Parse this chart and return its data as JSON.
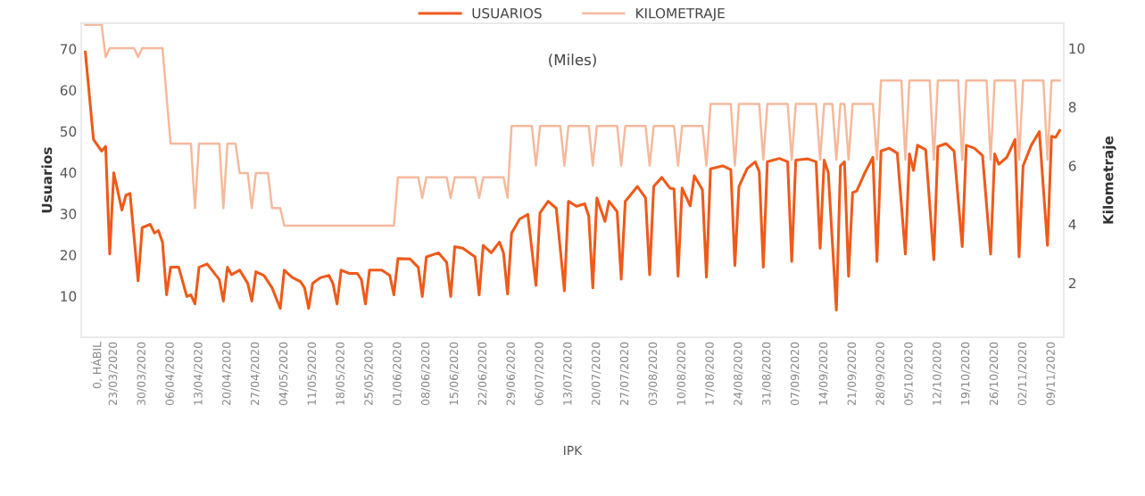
{
  "chart_data": {
    "type": "line",
    "subtitle": "(Miles)",
    "xlabel": "IPK",
    "ylabel": "Usuarios",
    "y2label": "Kilometraje",
    "legend": "top",
    "grid": false,
    "xlim": [
      "2020-03-15",
      "2020-11-12"
    ],
    "xticks": [
      {
        "value": "2020-03-19",
        "label": "0, HÁBIL"
      },
      {
        "value": "2020-03-23",
        "label": "23/03/2020"
      },
      {
        "value": "2020-03-30",
        "label": "30/03/2020"
      },
      {
        "value": "2020-04-06",
        "label": "06/04/2020"
      },
      {
        "value": "2020-04-13",
        "label": "13/04/2020"
      },
      {
        "value": "2020-04-20",
        "label": "20/04/2020"
      },
      {
        "value": "2020-04-27",
        "label": "27/04/2020"
      },
      {
        "value": "2020-05-04",
        "label": "04/05/2020"
      },
      {
        "value": "2020-05-11",
        "label": "11/05/2020"
      },
      {
        "value": "2020-05-18",
        "label": "18/05/2020"
      },
      {
        "value": "2020-05-25",
        "label": "25/05/2020"
      },
      {
        "value": "2020-06-01",
        "label": "01/06/2020"
      },
      {
        "value": "2020-06-08",
        "label": "08/06/2020"
      },
      {
        "value": "2020-06-15",
        "label": "15/06/2020"
      },
      {
        "value": "2020-06-22",
        "label": "22/06/2020"
      },
      {
        "value": "2020-06-29",
        "label": "29/06/2020"
      },
      {
        "value": "2020-07-06",
        "label": "06/07/2020"
      },
      {
        "value": "2020-07-13",
        "label": "13/07/2020"
      },
      {
        "value": "2020-07-20",
        "label": "20/07/2020"
      },
      {
        "value": "2020-07-27",
        "label": "27/07/2020"
      },
      {
        "value": "2020-08-03",
        "label": "03/08/2020"
      },
      {
        "value": "2020-08-10",
        "label": "10/08/2020"
      },
      {
        "value": "2020-08-17",
        "label": "17/08/2020"
      },
      {
        "value": "2020-08-24",
        "label": "24/08/2020"
      },
      {
        "value": "2020-08-31",
        "label": "31/08/2020"
      },
      {
        "value": "2020-09-07",
        "label": "07/09/2020"
      },
      {
        "value": "2020-09-14",
        "label": "14/09/2020"
      },
      {
        "value": "2020-09-21",
        "label": "21/09/2020"
      },
      {
        "value": "2020-09-28",
        "label": "28/09/2020"
      },
      {
        "value": "2020-10-05",
        "label": "05/10/2020"
      },
      {
        "value": "2020-10-12",
        "label": "12/10/2020"
      },
      {
        "value": "2020-10-19",
        "label": "19/10/2020"
      },
      {
        "value": "2020-10-26",
        "label": "26/10/2020"
      },
      {
        "value": "2020-11-02",
        "label": "02/11/2020"
      },
      {
        "value": "2020-11-09",
        "label": "09/11/2020"
      }
    ],
    "ylim": [
      0,
      76.2
    ],
    "yticks": [
      10,
      20,
      30,
      40,
      50,
      60,
      70
    ],
    "y2lim": [
      0.15,
      10.85
    ],
    "y2ticks": [
      2,
      4,
      6,
      8,
      10
    ],
    "series": [
      {
        "name": "USUARIOS",
        "color": "#ef5a1a",
        "x": [
          "2020-03-16",
          "2020-03-18",
          "2020-03-20",
          "2020-03-21",
          "2020-03-22",
          "2020-03-23",
          "2020-03-25",
          "2020-03-26",
          "2020-03-27",
          "2020-03-29",
          "2020-03-30",
          "2020-04-01",
          "2020-04-02",
          "2020-04-03",
          "2020-04-04",
          "2020-04-05",
          "2020-04-06",
          "2020-04-08",
          "2020-04-10",
          "2020-04-11",
          "2020-04-12",
          "2020-04-13",
          "2020-04-15",
          "2020-04-18",
          "2020-04-19",
          "2020-04-20",
          "2020-04-21",
          "2020-04-23",
          "2020-04-25",
          "2020-04-26",
          "2020-04-27",
          "2020-04-29",
          "2020-05-01",
          "2020-05-03",
          "2020-05-04",
          "2020-05-06",
          "2020-05-08",
          "2020-05-09",
          "2020-05-10",
          "2020-05-11",
          "2020-05-13",
          "2020-05-15",
          "2020-05-16",
          "2020-05-17",
          "2020-05-18",
          "2020-05-20",
          "2020-05-22",
          "2020-05-23",
          "2020-05-24",
          "2020-05-25",
          "2020-05-28",
          "2020-05-30",
          "2020-05-31",
          "2020-06-01",
          "2020-06-04",
          "2020-06-06",
          "2020-06-07",
          "2020-06-08",
          "2020-06-11",
          "2020-06-13",
          "2020-06-14",
          "2020-06-15",
          "2020-06-17",
          "2020-06-20",
          "2020-06-21",
          "2020-06-22",
          "2020-06-24",
          "2020-06-26",
          "2020-06-27",
          "2020-06-28",
          "2020-06-29",
          "2020-07-01",
          "2020-07-03",
          "2020-07-05",
          "2020-07-06",
          "2020-07-08",
          "2020-07-10",
          "2020-07-12",
          "2020-07-13",
          "2020-07-15",
          "2020-07-17",
          "2020-07-18",
          "2020-07-19",
          "2020-07-20",
          "2020-07-22",
          "2020-07-23",
          "2020-07-25",
          "2020-07-26",
          "2020-07-27",
          "2020-07-30",
          "2020-08-01",
          "2020-08-02",
          "2020-08-03",
          "2020-08-05",
          "2020-08-07",
          "2020-08-08",
          "2020-08-09",
          "2020-08-10",
          "2020-08-12",
          "2020-08-13",
          "2020-08-15",
          "2020-08-16",
          "2020-08-17",
          "2020-08-20",
          "2020-08-22",
          "2020-08-23",
          "2020-08-24",
          "2020-08-26",
          "2020-08-28",
          "2020-08-29",
          "2020-08-30",
          "2020-08-31",
          "2020-09-03",
          "2020-09-05",
          "2020-09-06",
          "2020-09-07",
          "2020-09-10",
          "2020-09-12",
          "2020-09-13",
          "2020-09-14",
          "2020-09-15",
          "2020-09-17",
          "2020-09-18",
          "2020-09-19",
          "2020-09-20",
          "2020-09-21",
          "2020-09-22",
          "2020-09-24",
          "2020-09-26",
          "2020-09-27",
          "2020-09-28",
          "2020-09-30",
          "2020-10-02",
          "2020-10-04",
          "2020-10-05",
          "2020-10-06",
          "2020-10-07",
          "2020-10-09",
          "2020-10-11",
          "2020-10-12",
          "2020-10-14",
          "2020-10-16",
          "2020-10-18",
          "2020-10-19",
          "2020-10-21",
          "2020-10-23",
          "2020-10-25",
          "2020-10-26",
          "2020-10-27",
          "2020-10-29",
          "2020-10-31",
          "2020-11-01",
          "2020-11-02",
          "2020-11-04",
          "2020-11-06",
          "2020-11-08",
          "2020-11-09",
          "2020-11-10",
          "2020-11-11"
        ],
        "values": [
          69.2,
          48,
          45.2,
          46.3,
          20.2,
          39.9,
          30.9,
          34.5,
          34.9,
          13.7,
          26.6,
          27.4,
          25.3,
          25.9,
          23.1,
          10.3,
          17,
          17,
          9.9,
          10.3,
          8.1,
          17,
          17.8,
          14,
          8.8,
          17,
          15.2,
          16.3,
          13.1,
          8.8,
          15.9,
          15,
          12,
          7,
          16.3,
          14.5,
          13.5,
          12,
          7,
          13.1,
          14.5,
          15,
          13,
          8.1,
          16.3,
          15.5,
          15.5,
          14,
          8.1,
          16.3,
          16.3,
          15,
          10.3,
          19.1,
          19,
          17,
          9.9,
          19.5,
          20.5,
          18.2,
          9.9,
          22,
          21.6,
          19.5,
          10.3,
          22.3,
          20.5,
          23.1,
          20.5,
          10.5,
          25.3,
          28.7,
          29.8,
          12.6,
          30.2,
          33,
          31.3,
          11.3,
          33,
          31.8,
          32.4,
          29.4,
          12,
          33.8,
          28.1,
          33,
          30.5,
          14.1,
          33,
          36.6,
          33.8,
          15.2,
          36.6,
          38.8,
          36.2,
          36,
          14.8,
          36.2,
          31.9,
          39.2,
          35.8,
          14.6,
          40.9,
          41.6,
          40.7,
          17.4,
          36.6,
          40.9,
          42.6,
          40.2,
          17,
          42.6,
          43.4,
          42.6,
          18.4,
          43,
          43.3,
          42.6,
          21.6,
          43,
          40,
          6.6,
          41.6,
          42.6,
          14.8,
          35.1,
          35.5,
          39.9,
          43.7,
          18.4,
          45.2,
          45.9,
          44.7,
          20.2,
          44.5,
          40.5,
          46.6,
          45.5,
          18.8,
          46.3,
          47,
          45.2,
          22,
          46.6,
          45.9,
          44.1,
          20.2,
          44.5,
          42,
          43.7,
          48,
          19.5,
          41.6,
          46.6,
          49.9,
          22.3,
          48.8,
          48.5,
          50.2
        ]
      },
      {
        "name": "KILOMETRAJE",
        "color": "#f5b99c",
        "axis": "y2",
        "x": [
          "2020-03-16",
          "2020-03-20",
          "2020-03-21",
          "2020-03-22",
          "2020-03-28",
          "2020-03-29",
          "2020-03-30",
          "2020-04-04",
          "2020-04-06",
          "2020-04-11",
          "2020-04-12",
          "2020-04-13",
          "2020-04-18",
          "2020-04-19",
          "2020-04-20",
          "2020-04-22",
          "2020-04-23",
          "2020-04-25",
          "2020-04-26",
          "2020-04-27",
          "2020-04-30",
          "2020-05-01",
          "2020-05-03",
          "2020-05-04",
          "2020-05-31",
          "2020-06-01",
          "2020-06-06",
          "2020-06-07",
          "2020-06-08",
          "2020-06-13",
          "2020-06-14",
          "2020-06-15",
          "2020-06-20",
          "2020-06-21",
          "2020-06-22",
          "2020-06-27",
          "2020-06-28",
          "2020-06-29",
          "2020-07-04",
          "2020-07-05",
          "2020-07-06",
          "2020-07-11",
          "2020-07-12",
          "2020-07-13",
          "2020-07-18",
          "2020-07-19",
          "2020-07-20",
          "2020-07-25",
          "2020-07-26",
          "2020-07-27",
          "2020-08-01",
          "2020-08-02",
          "2020-08-03",
          "2020-08-08",
          "2020-08-09",
          "2020-08-10",
          "2020-08-15",
          "2020-08-16",
          "2020-08-17",
          "2020-08-22",
          "2020-08-23",
          "2020-08-24",
          "2020-08-29",
          "2020-08-30",
          "2020-08-31",
          "2020-09-05",
          "2020-09-06",
          "2020-09-07",
          "2020-09-12",
          "2020-09-13",
          "2020-09-14",
          "2020-09-16",
          "2020-09-17",
          "2020-09-18",
          "2020-09-19",
          "2020-09-20",
          "2020-09-21",
          "2020-09-26",
          "2020-09-27",
          "2020-09-28",
          "2020-10-03",
          "2020-10-04",
          "2020-10-05",
          "2020-10-10",
          "2020-10-11",
          "2020-10-12",
          "2020-10-17",
          "2020-10-18",
          "2020-10-19",
          "2020-10-24",
          "2020-10-25",
          "2020-10-26",
          "2020-10-31",
          "2020-11-01",
          "2020-11-02",
          "2020-11-07",
          "2020-11-08",
          "2020-11-09",
          "2020-11-11"
        ],
        "values": [
          10.8,
          10.8,
          9.7,
          10,
          10,
          9.7,
          10,
          10,
          6.75,
          6.75,
          4.55,
          6.75,
          6.75,
          4.55,
          6.75,
          6.75,
          5.75,
          5.75,
          4.55,
          5.75,
          5.75,
          4.55,
          4.55,
          3.95,
          3.95,
          5.6,
          5.6,
          4.9,
          5.6,
          5.6,
          4.9,
          5.6,
          5.6,
          4.9,
          5.6,
          5.6,
          4.9,
          7.35,
          7.35,
          6,
          7.35,
          7.35,
          6,
          7.35,
          7.35,
          6,
          7.35,
          7.35,
          6,
          7.35,
          7.35,
          6,
          7.35,
          7.35,
          6,
          7.35,
          7.35,
          6,
          8.1,
          8.1,
          6,
          8.1,
          8.1,
          6.2,
          8.1,
          8.1,
          6.2,
          8.1,
          8.1,
          6.2,
          8.1,
          8.1,
          6.2,
          8.1,
          8.1,
          6.2,
          8.1,
          8.1,
          6.2,
          8.9,
          8.9,
          6.2,
          8.9,
          8.9,
          6.2,
          8.9,
          8.9,
          6.2,
          8.9,
          8.9,
          6.2,
          8.9,
          8.9,
          6.2,
          8.9,
          8.9,
          6.2,
          8.9,
          8.9
        ]
      }
    ]
  }
}
